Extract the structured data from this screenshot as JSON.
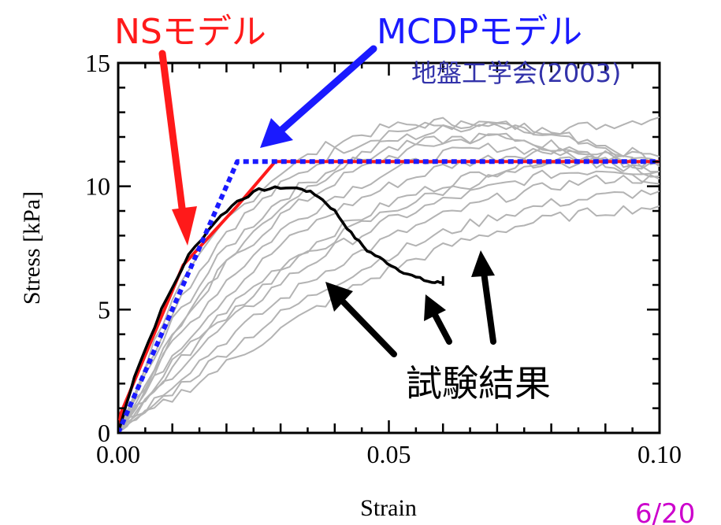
{
  "chart_data": {
    "type": "line",
    "xlabel": "Strain",
    "ylabel": "Stress [kPa]",
    "xlim": [
      0,
      0.1
    ],
    "ylim": [
      0,
      15
    ],
    "x_ticks": [
      "0.00",
      "0.05",
      "0.10"
    ],
    "y_ticks": [
      "0",
      "5",
      "10",
      "15"
    ],
    "x_tick_values": [
      0,
      0.05,
      0.1
    ],
    "y_tick_values": [
      0,
      5,
      10,
      15
    ],
    "grid": false,
    "series": [
      {
        "name": "NSモデル",
        "color": "#ff1a1a",
        "style": "solid",
        "x": [
          0,
          0.0005,
          0.012,
          0.022,
          0.029,
          0.1
        ],
        "y": [
          0,
          0.8,
          6.8,
          9.2,
          11.0,
          11.0
        ]
      },
      {
        "name": "MCDPモデル",
        "color": "#1a1aff",
        "style": "dotted",
        "x": [
          0,
          0.022,
          0.1
        ],
        "y": [
          0,
          11.0,
          11.0
        ]
      },
      {
        "name": "試験結果",
        "color": "#000000",
        "style": "solid",
        "x": [
          0,
          0.003,
          0.008,
          0.013,
          0.018,
          0.022,
          0.026,
          0.03,
          0.034,
          0.037,
          0.04,
          0.043,
          0.046,
          0.049,
          0.052,
          0.055,
          0.058,
          0.06
        ],
        "y": [
          0,
          2.3,
          5.0,
          7.2,
          8.6,
          9.4,
          9.85,
          9.95,
          9.9,
          9.6,
          9.0,
          8.1,
          7.4,
          7.0,
          6.6,
          6.3,
          6.1,
          6.1
        ]
      },
      {
        "color": "#b3b3b3",
        "style": "solid",
        "x": [
          0,
          0.01,
          0.02,
          0.03,
          0.04,
          0.05,
          0.06,
          0.07,
          0.08,
          0.09,
          0.1
        ],
        "y": [
          0,
          5.5,
          8.6,
          10.6,
          11.8,
          12.4,
          12.6,
          12.5,
          12.3,
          12.5,
          12.8
        ]
      },
      {
        "color": "#b3b3b3",
        "style": "solid",
        "x": [
          0,
          0.01,
          0.02,
          0.03,
          0.04,
          0.05,
          0.06,
          0.07,
          0.08,
          0.09,
          0.1
        ],
        "y": [
          0,
          5.0,
          8.2,
          10.0,
          11.4,
          12.2,
          12.5,
          12.4,
          12.0,
          11.5,
          11.2
        ]
      },
      {
        "color": "#b3b3b3",
        "style": "solid",
        "x": [
          0,
          0.01,
          0.02,
          0.03,
          0.04,
          0.05,
          0.06,
          0.07,
          0.08,
          0.09,
          0.1
        ],
        "y": [
          0,
          4.5,
          7.5,
          9.5,
          10.8,
          11.8,
          12.3,
          12.6,
          12.2,
          11.6,
          11.0
        ]
      },
      {
        "color": "#b3b3b3",
        "style": "solid",
        "x": [
          0,
          0.01,
          0.02,
          0.03,
          0.04,
          0.05,
          0.06,
          0.07,
          0.08,
          0.09,
          0.1
        ],
        "y": [
          0,
          4.0,
          6.8,
          8.8,
          10.2,
          11.2,
          11.8,
          12.0,
          11.6,
          11.0,
          10.4
        ]
      },
      {
        "color": "#b3b3b3",
        "style": "solid",
        "x": [
          0,
          0.01,
          0.02,
          0.03,
          0.04,
          0.05,
          0.06,
          0.07,
          0.08,
          0.09,
          0.1
        ],
        "y": [
          0,
          3.6,
          6.2,
          8.2,
          9.6,
          10.6,
          11.3,
          11.6,
          11.4,
          11.0,
          10.1
        ]
      },
      {
        "color": "#b3b3b3",
        "style": "solid",
        "x": [
          0,
          0.01,
          0.02,
          0.03,
          0.04,
          0.05,
          0.06,
          0.07,
          0.08,
          0.09,
          0.1
        ],
        "y": [
          0,
          3.2,
          5.6,
          7.6,
          9.0,
          10.0,
          10.8,
          11.2,
          11.5,
          11.3,
          10.8
        ]
      },
      {
        "color": "#b3b3b3",
        "style": "solid",
        "x": [
          0,
          0.01,
          0.02,
          0.03,
          0.04,
          0.05,
          0.06,
          0.07,
          0.08,
          0.09,
          0.1
        ],
        "y": [
          0,
          2.8,
          5.0,
          6.8,
          8.2,
          9.3,
          10.1,
          10.7,
          11.1,
          11.2,
          11.0
        ]
      },
      {
        "color": "#b3b3b3",
        "style": "solid",
        "x": [
          0,
          0.01,
          0.02,
          0.03,
          0.04,
          0.05,
          0.06,
          0.07,
          0.08,
          0.09,
          0.1
        ],
        "y": [
          0,
          2.4,
          4.4,
          6.1,
          7.5,
          8.6,
          9.4,
          10.0,
          10.5,
          10.7,
          10.6
        ]
      },
      {
        "color": "#b3b3b3",
        "style": "solid",
        "x": [
          0,
          0.01,
          0.02,
          0.03,
          0.04,
          0.05,
          0.06,
          0.07,
          0.08,
          0.09,
          0.1
        ],
        "y": [
          0,
          2.0,
          3.8,
          5.4,
          6.8,
          7.9,
          8.8,
          9.5,
          10.0,
          10.3,
          10.3
        ]
      },
      {
        "color": "#b3b3b3",
        "style": "solid",
        "x": [
          0,
          0.01,
          0.02,
          0.03,
          0.04,
          0.05,
          0.06,
          0.07,
          0.08,
          0.09,
          0.1
        ],
        "y": [
          0,
          1.7,
          3.3,
          4.8,
          6.1,
          7.2,
          8.1,
          8.8,
          9.3,
          9.6,
          9.8
        ]
      },
      {
        "color": "#b3b3b3",
        "style": "solid",
        "x": [
          0,
          0.01,
          0.02,
          0.03,
          0.04,
          0.05,
          0.06,
          0.07,
          0.08,
          0.09,
          0.1
        ],
        "y": [
          0,
          1.4,
          2.8,
          4.2,
          5.5,
          6.6,
          7.5,
          8.2,
          8.7,
          9.0,
          9.2
        ]
      },
      {
        "color": "#b3b3b3",
        "style": "solid",
        "x": [
          0,
          0.01,
          0.02,
          0.03,
          0.04,
          0.05,
          0.06,
          0.07,
          0.08,
          0.09,
          0.1
        ],
        "y": [
          0,
          3.9,
          7.0,
          9.2,
          10.7,
          11.5,
          11.9,
          12.0,
          11.7,
          11.2,
          10.6
        ]
      },
      {
        "color": "#b3b3b3",
        "style": "solid",
        "x": [
          0,
          0.01,
          0.02,
          0.03,
          0.04,
          0.05,
          0.06,
          0.07,
          0.08,
          0.09,
          0.1
        ],
        "y": [
          0,
          2.6,
          4.8,
          6.5,
          7.9,
          9.0,
          9.8,
          10.4,
          10.8,
          11.0,
          10.9
        ]
      }
    ]
  },
  "annotations": {
    "ns_label": "NSモデル",
    "mcdp_label": "MCDPモデル",
    "citation": "地盤工学会(2003)",
    "test_label": "試験結果",
    "page_number": "6/20",
    "colors": {
      "red": "#ff1a1a",
      "blue": "#1a1aff",
      "citation": "#3333aa",
      "page_number": "#cc00cc",
      "arrow_black": "#000000"
    }
  }
}
